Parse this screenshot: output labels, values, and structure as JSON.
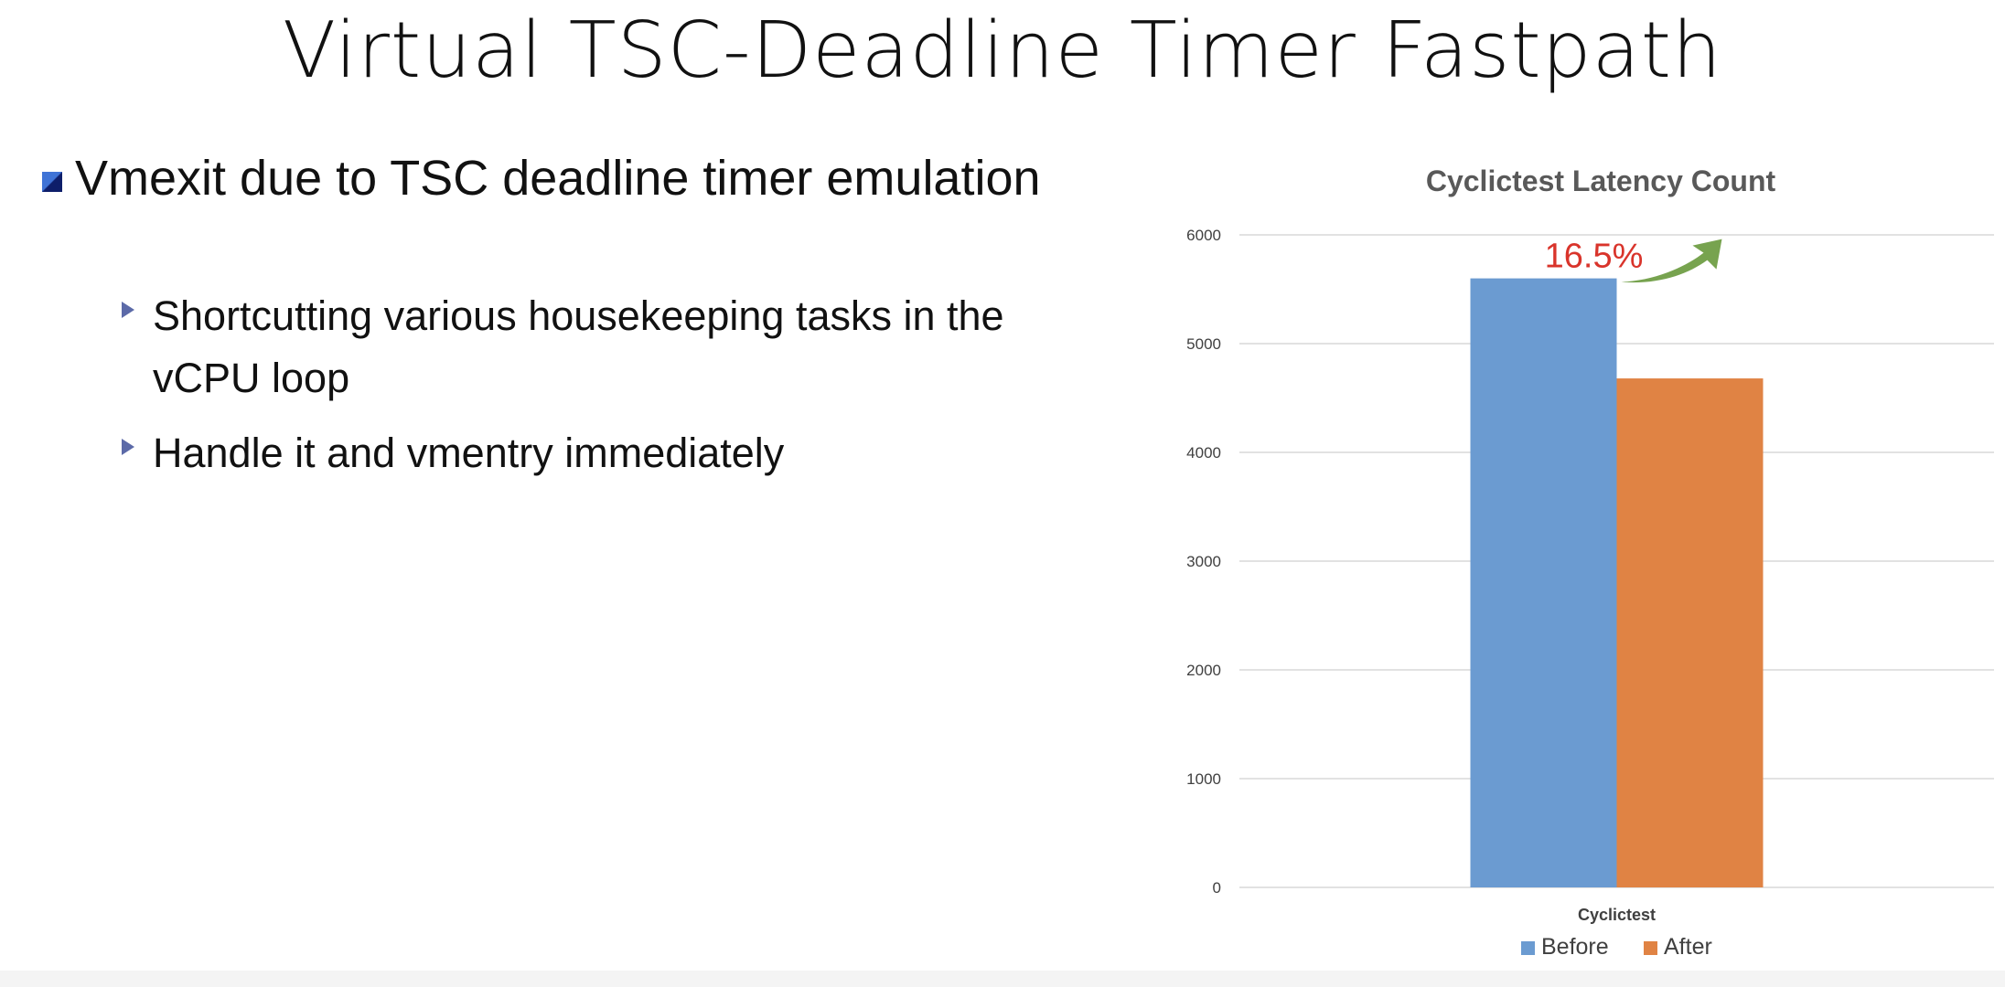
{
  "slide": {
    "title": "Virtual TSC-Deadline Timer Fastpath",
    "bullets": [
      {
        "text": "Vmexit due to TSC deadline timer emulation",
        "sub": [
          "Shortcutting various housekeeping tasks in the vCPU loop",
          "Handle it and vmentry immediately"
        ]
      }
    ]
  },
  "colors": {
    "before": "#6b9bd1",
    "after": "#e08344",
    "annotation_text": "#d9342b",
    "arrow": "#77a34f",
    "gridline": "#d9d9d9",
    "chart_title": "#595959"
  },
  "chart_data": {
    "type": "bar",
    "title": "Cyclictest Latency Count",
    "categories": [
      "Cyclictest"
    ],
    "series": [
      {
        "name": "Before",
        "values": [
          5600
        ]
      },
      {
        "name": "After",
        "values": [
          4680
        ]
      }
    ],
    "ylim": [
      0,
      6000
    ],
    "yticks": [
      0,
      1000,
      2000,
      3000,
      4000,
      5000,
      6000
    ],
    "grid": true,
    "legend": "bottom",
    "annotation": {
      "text": "16.5%",
      "arrow": "up-right"
    }
  }
}
